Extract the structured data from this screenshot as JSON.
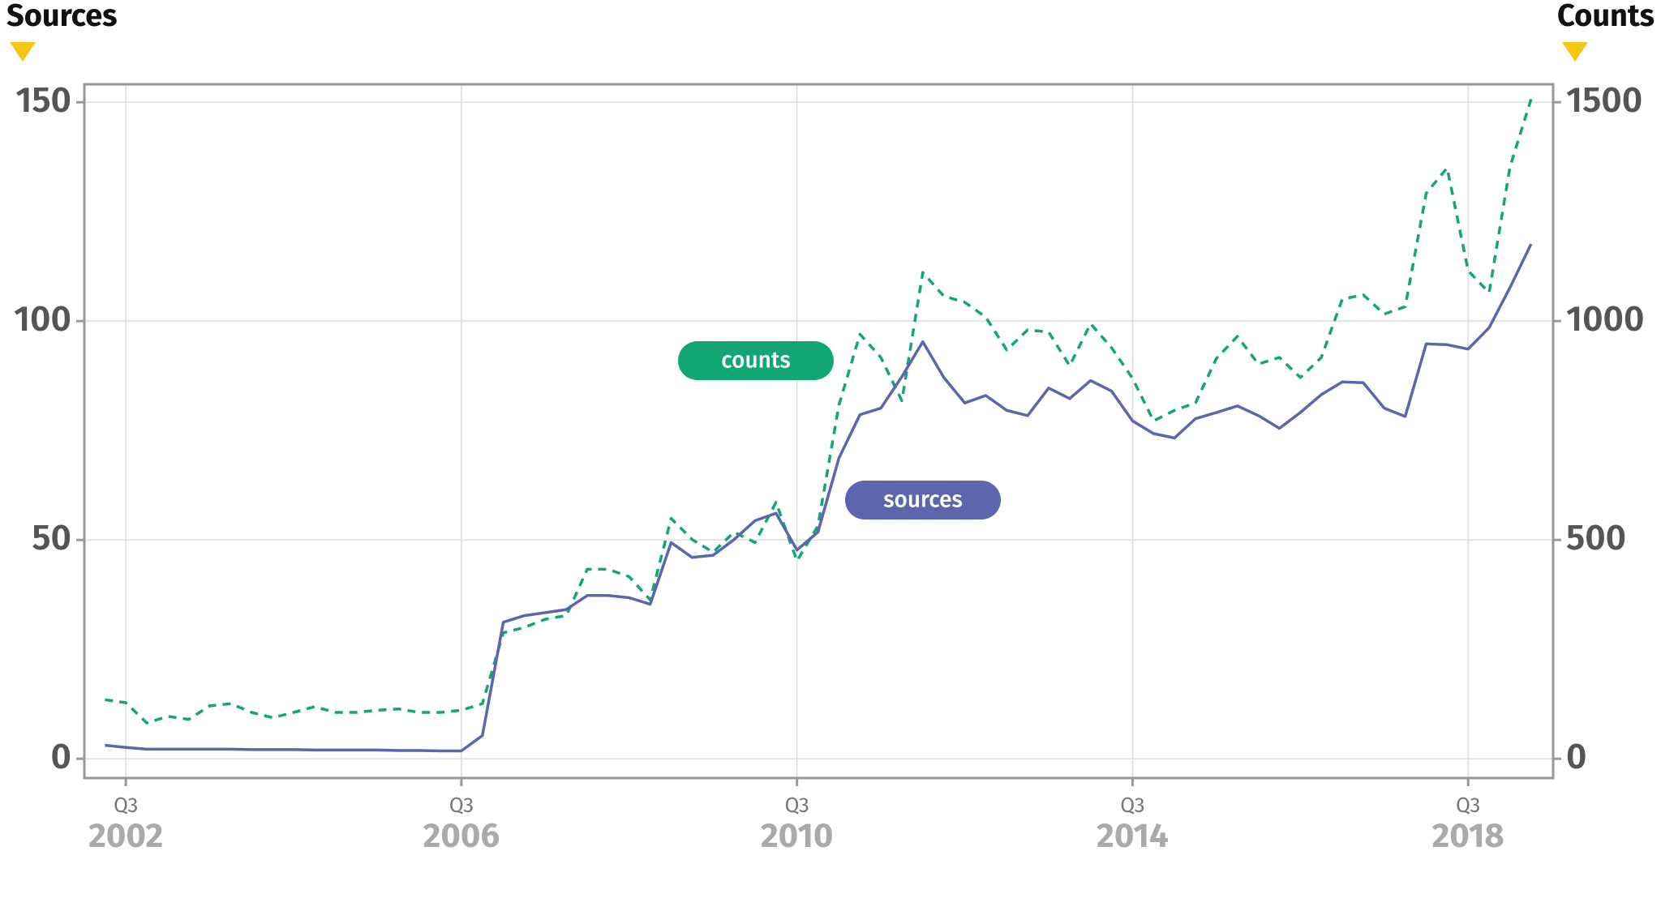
{
  "chart_data": {
    "type": "line",
    "y_title": "Sources",
    "y2_title": "Counts",
    "x": [
      "2002 Q2",
      "2002 Q3",
      "2002 Q4",
      "2003 Q1",
      "2003 Q2",
      "2003 Q3",
      "2003 Q4",
      "2004 Q1",
      "2004 Q2",
      "2004 Q3",
      "2004 Q4",
      "2005 Q1",
      "2005 Q2",
      "2005 Q3",
      "2005 Q4",
      "2006 Q1",
      "2006 Q2",
      "2006 Q3",
      "2006 Q4",
      "2007 Q1",
      "2007 Q2",
      "2007 Q3",
      "2007 Q4",
      "2008 Q1",
      "2008 Q2",
      "2008 Q3",
      "2008 Q4",
      "2009 Q1",
      "2009 Q2",
      "2009 Q3",
      "2009 Q4",
      "2010 Q1",
      "2010 Q2",
      "2010 Q3",
      "2010 Q4",
      "2011 Q1",
      "2011 Q2",
      "2011 Q3",
      "2011 Q4",
      "2012 Q1",
      "2012 Q2",
      "2012 Q3",
      "2012 Q4",
      "2013 Q1",
      "2013 Q2",
      "2013 Q3",
      "2013 Q4",
      "2014 Q1",
      "2014 Q2",
      "2014 Q3",
      "2014 Q4",
      "2015 Q1",
      "2015 Q2",
      "2015 Q3",
      "2015 Q4",
      "2016 Q1",
      "2016 Q2",
      "2016 Q3",
      "2016 Q4",
      "2017 Q1",
      "2017 Q2",
      "2017 Q3",
      "2017 Q4",
      "2018 Q1",
      "2018 Q2",
      "2018 Q3",
      "2018 Q4",
      "2019 Q1",
      "2019 Q2"
    ],
    "xticks": [
      {
        "value": "2002 Q3",
        "label": "Q3",
        "year": "2002"
      },
      {
        "value": "2006 Q3",
        "label": "Q3",
        "year": "2006"
      },
      {
        "value": "2010 Q3",
        "label": "Q3",
        "year": "2010"
      },
      {
        "value": "2014 Q3",
        "label": "Q3",
        "year": "2014"
      },
      {
        "value": "2018 Q3",
        "label": "Q3",
        "year": "2018"
      }
    ],
    "ylim": [
      -4.4,
      154.1
    ],
    "yticks": [
      0,
      50,
      100,
      150
    ],
    "y2lim": [
      -44,
      1541
    ],
    "y2ticks": [
      0,
      500,
      1000,
      1500
    ],
    "grid": true,
    "series": [
      {
        "name": "sources",
        "color": "#5b66ad",
        "line_style": "solid",
        "values": [
          3.1,
          2.6,
          2.2,
          2.2,
          2.2,
          2.2,
          2.2,
          2.1,
          2.1,
          2.1,
          2.0,
          2.0,
          2.0,
          2.0,
          1.9,
          1.9,
          1.8,
          1.8,
          5.3,
          31.2,
          32.7,
          33.4,
          34.1,
          37.3,
          37.3,
          36.8,
          35.3,
          49.4,
          46.0,
          46.5,
          50.1,
          54.4,
          56.1,
          47.7,
          51.8,
          68.7,
          78.6,
          80.1,
          87.3,
          95.3,
          87.1,
          81.3,
          83.0,
          79.6,
          78.4,
          84.7,
          82.3,
          86.4,
          84.0,
          77.2,
          74.3,
          73.3,
          77.7,
          79.1,
          80.6,
          78.4,
          75.5,
          79.1,
          83.2,
          86.1,
          85.9,
          80.1,
          78.2,
          94.8,
          94.6,
          93.6,
          98.5,
          107.7,
          117.6
        ]
      },
      {
        "name": "counts",
        "color": "#12a677",
        "line_style": "dashed",
        "axis": "y2",
        "values": [
          135,
          128,
          82,
          97,
          90,
          121,
          126,
          106,
          94,
          106,
          119,
          106,
          106,
          111,
          114,
          106,
          106,
          111,
          126,
          288,
          300,
          319,
          327,
          433,
          433,
          416,
          363,
          549,
          501,
          472,
          518,
          494,
          586,
          452,
          532,
          808,
          970,
          917,
          818,
          1111,
          1057,
          1043,
          1009,
          934,
          980,
          975,
          898,
          994,
          939,
          869,
          772,
          796,
          813,
          915,
          965,
          902,
          917,
          871,
          917,
          1050,
          1060,
          1016,
          1033,
          1292,
          1350,
          1115,
          1065,
          1353,
          1507
        ]
      }
    ]
  }
}
